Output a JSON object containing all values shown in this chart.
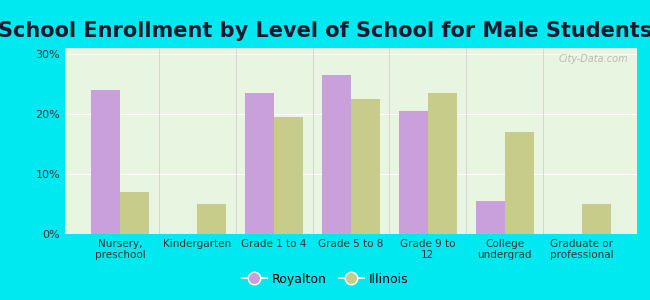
{
  "title": "School Enrollment by Level of School for Male Students",
  "categories": [
    "Nursery,\npreschool",
    "Kindergarten",
    "Grade 1 to 4",
    "Grade 5 to 8",
    "Grade 9 to\n12",
    "College\nundergrad",
    "Graduate or\nprofessional"
  ],
  "royalton": [
    24.0,
    0.0,
    23.5,
    26.5,
    20.5,
    5.5,
    0.0
  ],
  "illinois": [
    7.0,
    5.0,
    19.5,
    22.5,
    23.5,
    17.0,
    5.0
  ],
  "royalton_color": "#c9a0dc",
  "illinois_color": "#c8cc8a",
  "background_color": "#00e8f0",
  "plot_bg": "#e8f5e0",
  "yticks": [
    0,
    10,
    20,
    30
  ],
  "ylim": [
    0,
    31
  ],
  "bar_width": 0.38,
  "title_fontsize": 15,
  "tick_label_fontsize": 7.5,
  "legend_labels": [
    "Royalton",
    "Illinois"
  ],
  "watermark": "City-Data.com"
}
